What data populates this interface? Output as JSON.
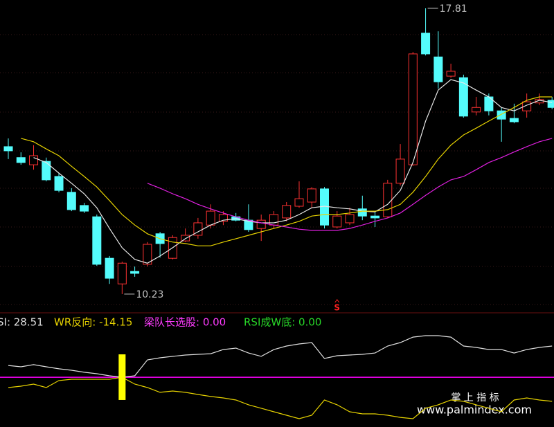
{
  "chart_data": [
    {
      "type": "candlestick",
      "ylim": [
        9.77,
        18.03
      ],
      "up_color": "#ff3232",
      "down_color": "#54fcfc",
      "open": [
        14.14,
        13.85,
        13.66,
        13.75,
        13.35,
        12.93,
        12.58,
        12.28,
        11.18,
        10.5,
        10.83,
        11.02,
        11.83,
        11.18,
        11.64,
        11.79,
        12.06,
        12.16,
        12.28,
        12.19,
        11.97,
        12.06,
        12.25,
        12.56,
        12.67,
        13.02,
        12.01,
        12.12,
        12.49,
        12.3,
        12.28,
        13.17,
        13.66,
        17.15,
        16.52,
        16.01,
        15.97,
        15.06,
        15.46,
        15.09,
        14.89,
        15.09,
        15.3,
        15.37
      ],
      "high": [
        14.36,
        13.99,
        14.18,
        13.85,
        13.44,
        13.04,
        12.65,
        12.34,
        11.24,
        11.09,
        10.96,
        11.61,
        11.88,
        11.79,
        11.97,
        12.25,
        12.61,
        12.43,
        12.38,
        12.61,
        12.34,
        12.43,
        12.67,
        13.22,
        13.07,
        13.07,
        12.43,
        12.52,
        12.84,
        12.43,
        13.26,
        14.21,
        16.65,
        17.81,
        17.2,
        16.34,
        16.05,
        15.46,
        15.55,
        15.18,
        15.28,
        15.55,
        15.55,
        15.46
      ],
      "low": [
        13.81,
        13.66,
        13.53,
        13.22,
        12.93,
        12.43,
        12.38,
        10.98,
        10.5,
        10.23,
        10.69,
        10.96,
        11.2,
        11.15,
        11.61,
        11.7,
        11.97,
        12.06,
        12.16,
        11.88,
        11.64,
        11.97,
        12.16,
        12.52,
        12.52,
        11.97,
        11.97,
        12.06,
        12.19,
        12.01,
        12.25,
        13.11,
        13.63,
        16.56,
        15.68,
        15.97,
        14.91,
        14.97,
        14.97,
        14.27,
        14.76,
        14.91,
        15.24,
        15.13
      ],
      "close": [
        14.03,
        13.72,
        13.9,
        13.26,
        12.98,
        12.47,
        12.43,
        11.02,
        10.65,
        11.05,
        10.78,
        11.55,
        11.57,
        11.73,
        11.79,
        12.12,
        12.43,
        12.34,
        12.19,
        11.94,
        12.19,
        12.34,
        12.58,
        12.76,
        13.02,
        12.06,
        12.3,
        12.34,
        12.3,
        12.25,
        13.17,
        13.81,
        16.6,
        16.6,
        15.86,
        16.14,
        14.95,
        15.18,
        15.09,
        14.87,
        14.8,
        15.33,
        15.39,
        15.18
      ],
      "series": [
        {
          "color": "#e8e8e8",
          "values": [
            null,
            null,
            13.85,
            13.72,
            13.44,
            13.17,
            12.89,
            12.52,
            11.97,
            11.46,
            11.15,
            11.05,
            11.24,
            11.46,
            11.7,
            11.88,
            12.06,
            12.19,
            12.23,
            12.16,
            12.12,
            12.12,
            12.19,
            12.34,
            12.52,
            12.56,
            12.52,
            12.49,
            12.43,
            12.41,
            12.61,
            12.98,
            13.72,
            14.82,
            15.64,
            15.92,
            15.83,
            15.64,
            15.46,
            15.18,
            15.09,
            15.24,
            15.37,
            15.31
          ]
        },
        {
          "color": "#e6d200",
          "values": [
            null,
            14.36,
            14.27,
            14.08,
            13.9,
            13.62,
            13.35,
            13.07,
            12.71,
            12.34,
            12.06,
            11.83,
            11.7,
            11.61,
            11.57,
            11.51,
            11.51,
            11.61,
            11.7,
            11.79,
            11.88,
            11.97,
            12.06,
            12.16,
            12.3,
            12.34,
            12.34,
            12.38,
            12.43,
            12.43,
            12.47,
            12.61,
            12.93,
            13.35,
            13.81,
            14.18,
            14.45,
            14.63,
            14.82,
            15.0,
            15.18,
            15.37,
            15.46,
            15.46
          ]
        },
        {
          "color": "#e020e0",
          "values": [
            null,
            null,
            null,
            null,
            null,
            null,
            null,
            null,
            null,
            null,
            null,
            13.17,
            13.04,
            12.89,
            12.76,
            12.61,
            12.49,
            12.38,
            12.28,
            12.19,
            12.12,
            12.06,
            12.01,
            11.95,
            11.92,
            11.92,
            11.92,
            11.97,
            12.06,
            12.16,
            12.25,
            12.38,
            12.61,
            12.85,
            13.07,
            13.26,
            13.35,
            13.53,
            13.72,
            13.85,
            14.0,
            14.14,
            14.27,
            14.36
          ]
        }
      ],
      "annotations": [
        {
          "text": "17.81",
          "index": 33,
          "at": "high"
        },
        {
          "text": "10.23",
          "index": 9,
          "at": "low"
        }
      ],
      "signals": [
        {
          "text": "S",
          "index": 26,
          "color": "#ff2020"
        }
      ]
    },
    {
      "type": "line",
      "ylim": [
        0,
        100
      ],
      "legend": [
        {
          "text": "SI: 28.51",
          "color": "#e0e0e0"
        },
        {
          "text": "WR反向: -14.15",
          "color": "#e6d200"
        },
        {
          "text": "梁队长选股: 0.00",
          "color": "#ff3cff"
        },
        {
          "text": "RSI成W底: 0.00",
          "color": "#28d828"
        }
      ],
      "series": [
        {
          "color": "#e0e0e0",
          "values": [
            54.9,
            53.7,
            55.6,
            53.7,
            51.9,
            50.6,
            48.8,
            47.5,
            45.7,
            44.4,
            45.7,
            59.9,
            61.7,
            63.0,
            64.2,
            64.8,
            65.4,
            69.1,
            70.4,
            66.0,
            63.0,
            69.1,
            72.2,
            74.1,
            75.3,
            61.1,
            63.6,
            64.2,
            64.8,
            66.0,
            72.2,
            75.3,
            80.2,
            81.5,
            81.5,
            80.2,
            72.2,
            71.0,
            69.1,
            69.1,
            66.0,
            69.1,
            71.0,
            72.2
          ]
        },
        {
          "color": "#e6d200",
          "values": [
            35.2,
            36.4,
            38.3,
            35.2,
            41.4,
            42.6,
            42.6,
            42.6,
            42.6,
            44.4,
            38.3,
            35.2,
            30.9,
            32.1,
            30.9,
            29.0,
            27.2,
            25.9,
            24.1,
            19.8,
            16.7,
            13.6,
            10.5,
            7.4,
            10.5,
            24.1,
            19.8,
            13.6,
            11.7,
            11.7,
            10.5,
            8.6,
            7.4,
            16.7,
            19.8,
            24.1,
            22.9,
            19.8,
            16.7,
            13.6,
            24.1,
            25.9,
            24.1,
            22.9
          ]
        }
      ],
      "hline": {
        "value": 44.4,
        "color": "#ff00ff"
      },
      "signal_bar": {
        "index": 9,
        "low": 24.1,
        "high": 64.8,
        "color": "#ffff00"
      }
    }
  ],
  "watermark": {
    "title": "掌 上 指 标",
    "url": "www.palmindex.com"
  }
}
